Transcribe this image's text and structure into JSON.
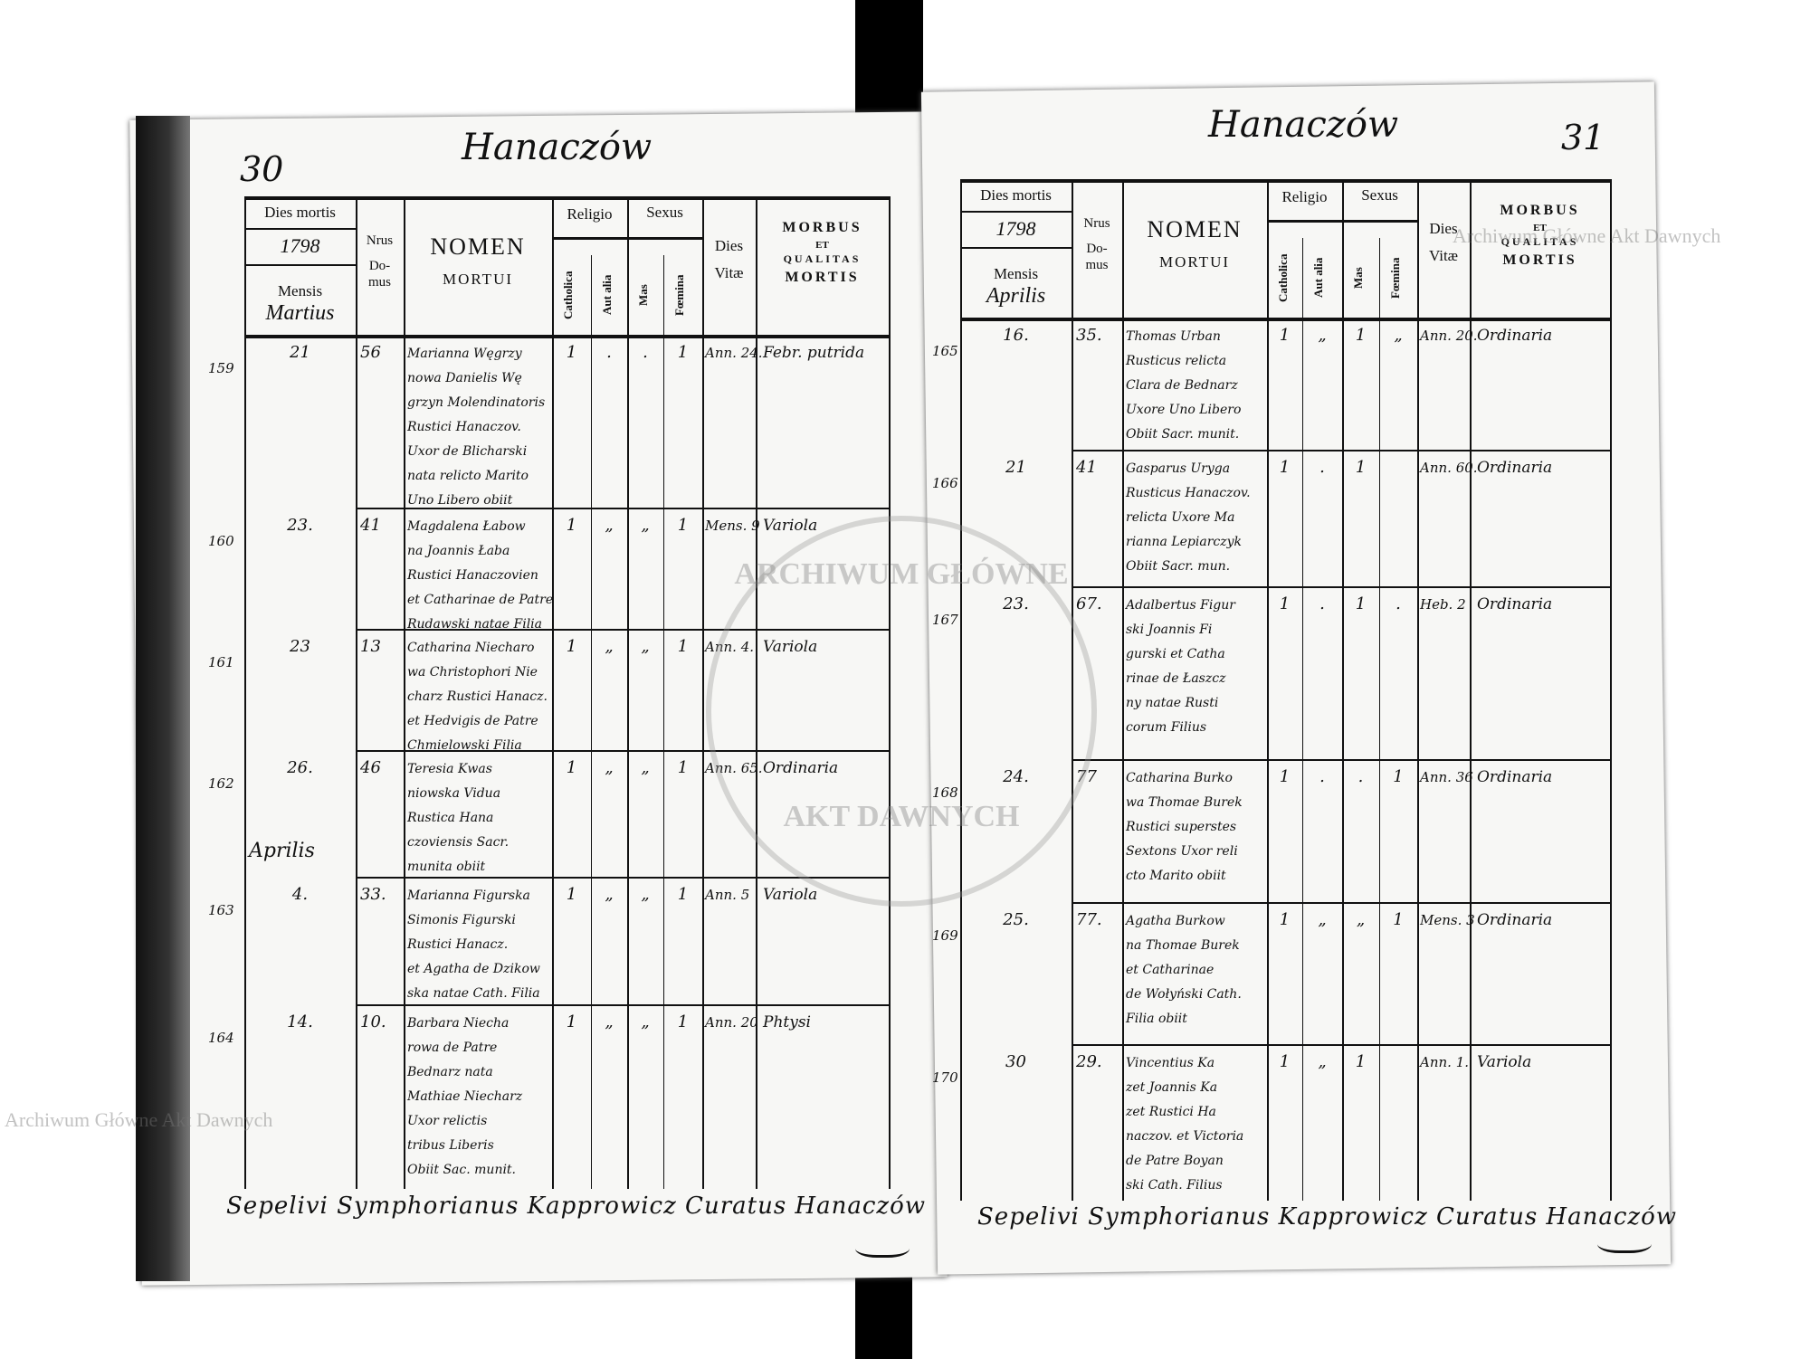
{
  "watermark": "Archiwum Główne Akt Dawnych",
  "seal": {
    "top": "ARCHIWUM GŁÓWNE",
    "bottom": "AKT DAWNYCH"
  },
  "headers": {
    "dies_mortis": "Dies mortis",
    "year": "1798",
    "mensis": "Mensis",
    "nrus": "Nrus",
    "domus": "Do-\nmus",
    "nomen": "NOMEN",
    "mortui": "MORTUI",
    "religio": "Religio",
    "catholica": "Catholica",
    "aut_alia": "Aut alia",
    "sexus": "Sexus",
    "mas": "Mas",
    "foemina": "Fœmina",
    "dies": "Dies",
    "vitae": "Vitæ",
    "morbus": "MORBUS",
    "et": "ET",
    "qualitas": "QUALITAS",
    "mortis": "MORTIS"
  },
  "left_page": {
    "page_number": "30",
    "parish": "Hanaczów",
    "month": "Martius",
    "rows": [
      {
        "no": "159",
        "day": "21",
        "house": "56",
        "name": [
          "Marianna Węgrzy",
          "nowa Danielis Wę",
          "grzyn Molendinatoris",
          "Rustici Hanaczov.",
          "Uxor de Blicharski",
          "nata relicto Marito",
          "Uno Libero obiit"
        ],
        "cath": "1",
        "alia": ".",
        "mas": ".",
        "foem": "1",
        "vitae": "Ann. 24.",
        "morbus": "Febr. putrida"
      },
      {
        "no": "160",
        "day": "23.",
        "house": "41",
        "name": [
          "Magdalena Łabow",
          "na Joannis Łaba",
          "Rustici Hanaczovien",
          "et Catharinae de Patre",
          "Rudawski natae Filia"
        ],
        "cath": "1",
        "alia": "„",
        "mas": "„",
        "foem": "1",
        "vitae": "Mens. 9",
        "morbus": "Variola"
      },
      {
        "no": "161",
        "day": "23",
        "house": "13",
        "name": [
          "Catharina Niecharo",
          "wa Christophori Nie",
          "charz Rustici Hanacz.",
          "et Hedvigis de Patre",
          "Chmielowski Filia"
        ],
        "cath": "1",
        "alia": "„",
        "mas": "„",
        "foem": "1",
        "vitae": "Ann. 4.",
        "morbus": "Variola"
      },
      {
        "no": "162",
        "day": "26.",
        "house": "46",
        "name": [
          "Teresia Kwas",
          "niowska Vidua",
          "Rustica Hana",
          "czoviensis Sacr.",
          "munita obiit"
        ],
        "cath": "1",
        "alia": "„",
        "mas": "„",
        "foem": "1",
        "vitae": "Ann. 65.",
        "morbus": "Ordinaria",
        "month_after": "Aprilis"
      },
      {
        "no": "163",
        "day": "4.",
        "house": "33.",
        "name": [
          "Marianna Figurska",
          "Simonis Figurski",
          "Rustici Hanacz.",
          "et Agatha de Dzikow",
          "ska natae Cath. Filia"
        ],
        "cath": "1",
        "alia": "„",
        "mas": "„",
        "foem": "1",
        "vitae": "Ann. 5",
        "morbus": "Variola"
      },
      {
        "no": "164",
        "day": "14.",
        "house": "10.",
        "name": [
          "Barbara Niecha",
          "rowa de Patre",
          "Bednarz nata",
          "Mathiae Niecharz",
          "Uxor relictis",
          "tribus Liberis",
          "Obiit Sac. munit."
        ],
        "cath": "1",
        "alia": "„",
        "mas": "„",
        "foem": "1",
        "vitae": "Ann. 20",
        "morbus": "Phtysi"
      }
    ],
    "footer": "Sepelivi Symphorianus Kapprowicz Curatus Hanaczów"
  },
  "right_page": {
    "page_number": "31",
    "parish": "Hanaczów",
    "month": "Aprilis",
    "rows": [
      {
        "no": "165",
        "day": "16.",
        "house": "35.",
        "name": [
          "Thomas Urban",
          "Rusticus relicta",
          "Clara de Bednarz",
          "Uxore Uno Libero",
          "Obiit Sacr. munit."
        ],
        "cath": "1",
        "alia": "„",
        "mas": "1",
        "foem": "„",
        "vitae": "Ann. 20.",
        "morbus": "Ordinaria"
      },
      {
        "no": "166",
        "day": "21",
        "house": "41",
        "name": [
          "Gasparus Uryga",
          "Rusticus Hanaczov.",
          "relicta Uxore Ma",
          "rianna Lepiarczyk",
          "Obiit Sacr. mun."
        ],
        "cath": "1",
        "alia": ".",
        "mas": "1",
        "foem": "",
        "vitae": "Ann. 60.",
        "morbus": "Ordinaria"
      },
      {
        "no": "167",
        "day": "23.",
        "house": "67.",
        "name": [
          "Adalbertus Figur",
          "ski Joannis Fi",
          "gurski et Catha",
          "rinae de Łaszcz",
          "ny natae Rusti",
          "corum Filius"
        ],
        "cath": "1",
        "alia": ".",
        "mas": "1",
        "foem": ".",
        "vitae": "Heb. 2",
        "morbus": "Ordinaria"
      },
      {
        "no": "168",
        "day": "24.",
        "house": "77",
        "name": [
          "Catharina Burko",
          "wa Thomae Burek",
          "Rustici superstes",
          "Sextons Uxor reli",
          "cto Marito obiit"
        ],
        "cath": "1",
        "alia": ".",
        "mas": ".",
        "foem": "1",
        "vitae": "Ann. 36",
        "morbus": "Ordinaria"
      },
      {
        "no": "169",
        "day": "25.",
        "house": "77.",
        "name": [
          "Agatha Burkow",
          "na Thomae Burek",
          "et Catharinae",
          "de Wołyński Cath.",
          "Filia obiit"
        ],
        "cath": "1",
        "alia": "„",
        "mas": "„",
        "foem": "1",
        "vitae": "Mens. 3",
        "morbus": "Ordinaria"
      },
      {
        "no": "170",
        "day": "30",
        "house": "29.",
        "name": [
          "Vincentius Ka",
          "zet Joannis Ka",
          "zet Rustici Ha",
          "naczov. et Victoria",
          "de Patre Boyan",
          "ski Cath. Filius"
        ],
        "cath": "1",
        "alia": "„",
        "mas": "1",
        "foem": "",
        "vitae": "Ann. 1.",
        "morbus": "Variola"
      }
    ],
    "footer": "Sepelivi Symphorianus Kapprowicz Curatus Hanaczów"
  }
}
